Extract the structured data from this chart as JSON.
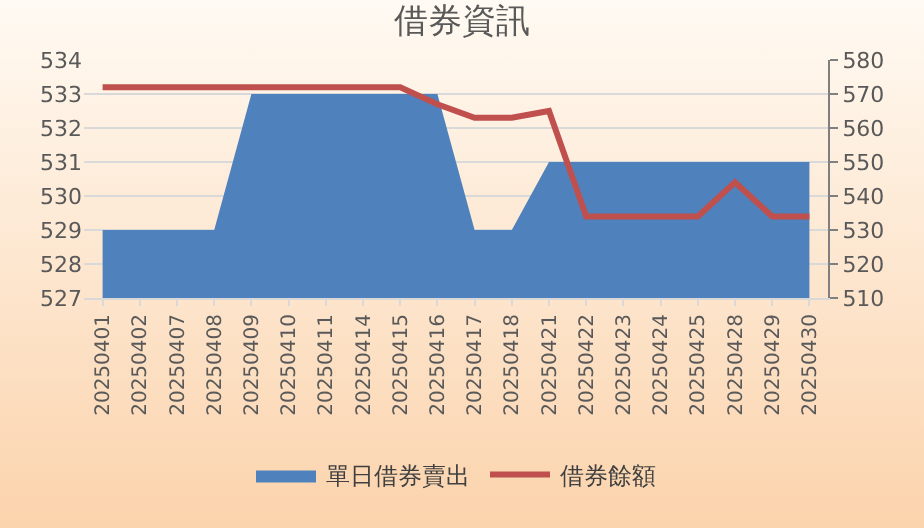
{
  "chart_data": {
    "type": "area",
    "title": "借券資訊",
    "categories": [
      "20250401",
      "20250402",
      "20250407",
      "20250408",
      "20250409",
      "20250410",
      "20250411",
      "20250414",
      "20250415",
      "20250416",
      "20250417",
      "20250418",
      "20250421",
      "20250422",
      "20250423",
      "20250424",
      "20250425",
      "20250428",
      "20250429",
      "20250430"
    ],
    "series": [
      {
        "name": "單日借券賣出",
        "color": "#4f81bd",
        "values": [
          529,
          529,
          529,
          529,
          533,
          533,
          533,
          533,
          533,
          533,
          529,
          529,
          531,
          531,
          531,
          531,
          531,
          531,
          531,
          531
        ]
      },
      {
        "name": "借券餘額",
        "type": "line",
        "axis": "y2",
        "color": "#c0504d",
        "values": [
          572,
          572,
          572,
          572,
          572,
          572,
          572,
          572,
          572,
          567,
          563,
          563,
          565,
          534,
          534,
          534,
          534,
          544,
          534,
          534
        ]
      }
    ],
    "ylim": [
      527,
      534
    ],
    "yticks": [
      527,
      528,
      529,
      530,
      531,
      532,
      533,
      534
    ],
    "y2lim": [
      510,
      580
    ],
    "y2ticks": [
      510,
      520,
      530,
      540,
      550,
      560,
      570,
      580
    ],
    "grid": "y",
    "legend": "bottom",
    "marker": "none",
    "line_style": "solid"
  }
}
